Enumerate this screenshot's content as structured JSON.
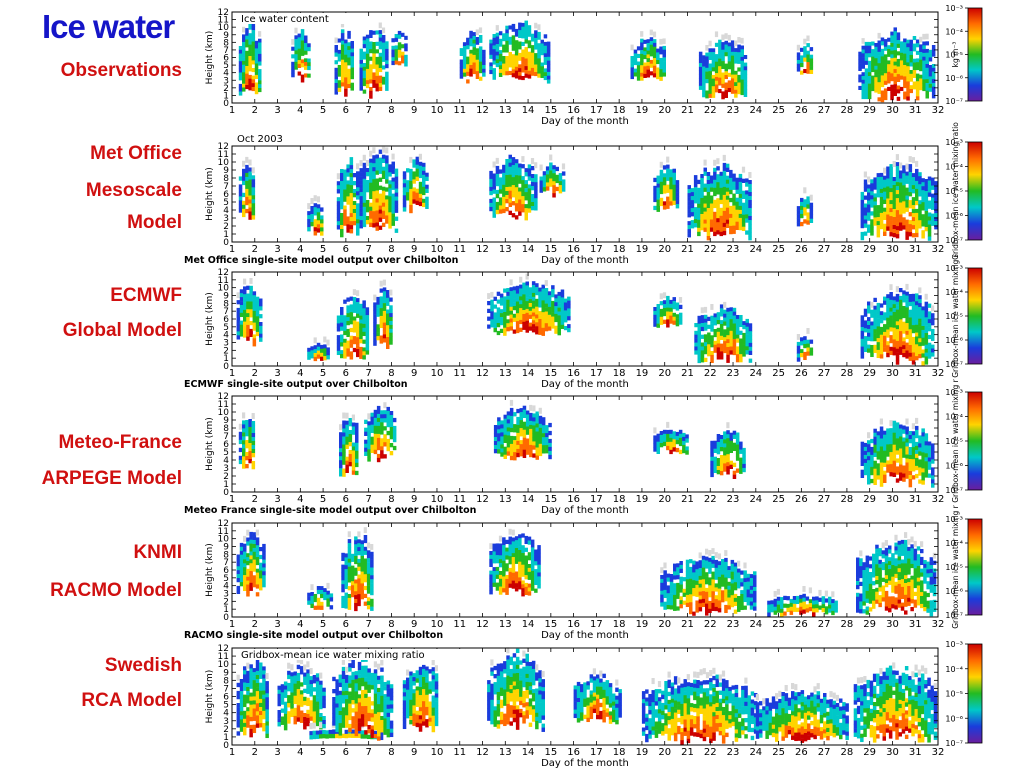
{
  "title": "Ice water",
  "colors": {
    "title": "#1515c8",
    "labels": "#d01010"
  },
  "colorbar": {
    "ticks": [
      "10⁻³",
      "10⁻⁴",
      "10⁻⁵",
      "10⁻⁶",
      "10⁻⁷"
    ],
    "stops": [
      "#cc0000",
      "#ff6a00",
      "#ffd400",
      "#22bb22",
      "#00c8c8",
      "#1a3cdc",
      "#6a1e9e"
    ]
  },
  "chart_data": [
    {
      "type": "heatmap",
      "label": [
        "Observations"
      ],
      "inner_title": "Ice water content",
      "top_text": "",
      "caption": "",
      "xlabel": "Day of the month",
      "ylabel": "Height (km)",
      "cbar_label": "kg m⁻³",
      "xlim": [
        1,
        32
      ],
      "ylim": [
        0,
        12
      ],
      "xticks": [
        1,
        2,
        3,
        4,
        5,
        6,
        7,
        8,
        9,
        10,
        11,
        12,
        13,
        14,
        15,
        16,
        17,
        18,
        19,
        20,
        21,
        22,
        23,
        24,
        25,
        26,
        27,
        28,
        29,
        30,
        31,
        32
      ],
      "yticks": [
        0,
        1,
        2,
        3,
        4,
        5,
        6,
        7,
        8,
        9,
        10,
        11,
        12
      ],
      "cloud_events": [
        {
          "start": 1.3,
          "end": 2.2,
          "base_km": 1,
          "top_km": 11
        },
        {
          "start": 3.6,
          "end": 4.4,
          "base_km": 3,
          "top_km": 10
        },
        {
          "start": 5.5,
          "end": 6.3,
          "base_km": 1,
          "top_km": 10
        },
        {
          "start": 6.6,
          "end": 7.8,
          "base_km": 1,
          "top_km": 11
        },
        {
          "start": 8.0,
          "end": 8.6,
          "base_km": 5,
          "top_km": 10
        },
        {
          "start": 11.0,
          "end": 12.0,
          "base_km": 3,
          "top_km": 10
        },
        {
          "start": 12.3,
          "end": 14.9,
          "base_km": 3,
          "top_km": 11
        },
        {
          "start": 18.5,
          "end": 20.0,
          "base_km": 3,
          "top_km": 9
        },
        {
          "start": 21.5,
          "end": 23.6,
          "base_km": 0.5,
          "top_km": 9
        },
        {
          "start": 25.8,
          "end": 26.5,
          "base_km": 4,
          "top_km": 8
        },
        {
          "start": 28.5,
          "end": 31.8,
          "base_km": 0.5,
          "top_km": 10
        }
      ]
    },
    {
      "type": "heatmap",
      "label": [
        "Met Office",
        "Mesoscale",
        "Model"
      ],
      "inner_title": "",
      "top_text": "Oct 2003",
      "caption": "Met Office single-site model output over Chilbolton",
      "xlabel": "Day of the month",
      "ylabel": "Height (km)",
      "cbar_label": "Gridbox-mean ice water mixing ratio",
      "xlim": [
        1,
        32
      ],
      "ylim": [
        0,
        12
      ],
      "xticks": [
        1,
        2,
        3,
        4,
        5,
        6,
        7,
        8,
        9,
        10,
        11,
        12,
        13,
        14,
        15,
        16,
        17,
        18,
        19,
        20,
        21,
        22,
        23,
        24,
        25,
        26,
        27,
        28,
        29,
        30,
        31,
        32
      ],
      "yticks": [
        0,
        1,
        2,
        3,
        4,
        5,
        6,
        7,
        8,
        9,
        10,
        11,
        12
      ],
      "cloud_events": [
        {
          "start": 1.3,
          "end": 2.0,
          "base_km": 3,
          "top_km": 10
        },
        {
          "start": 4.3,
          "end": 5.0,
          "base_km": 1,
          "top_km": 5
        },
        {
          "start": 5.6,
          "end": 6.5,
          "base_km": 1,
          "top_km": 11
        },
        {
          "start": 6.6,
          "end": 8.2,
          "base_km": 1,
          "top_km": 12
        },
        {
          "start": 8.5,
          "end": 9.5,
          "base_km": 4,
          "top_km": 11
        },
        {
          "start": 12.3,
          "end": 14.3,
          "base_km": 3,
          "top_km": 11
        },
        {
          "start": 14.5,
          "end": 15.5,
          "base_km": 6,
          "top_km": 10
        },
        {
          "start": 19.5,
          "end": 20.5,
          "base_km": 4,
          "top_km": 10
        },
        {
          "start": 21.0,
          "end": 23.8,
          "base_km": 0.5,
          "top_km": 10
        },
        {
          "start": 25.8,
          "end": 26.4,
          "base_km": 2,
          "top_km": 6
        },
        {
          "start": 28.6,
          "end": 31.9,
          "base_km": 0.5,
          "top_km": 10
        }
      ]
    },
    {
      "type": "heatmap",
      "label": [
        "ECMWF",
        "Global Model"
      ],
      "inner_title": "",
      "top_text": "",
      "caption": "ECMWF single-site output over Chilbolton",
      "xlabel": "Day of the month",
      "ylabel": "Height (km)",
      "cbar_label": "Gridbox-mean ice water mixing r",
      "xlim": [
        1,
        32
      ],
      "ylim": [
        0,
        12
      ],
      "xticks": [
        1,
        2,
        3,
        4,
        5,
        6,
        7,
        8,
        9,
        10,
        11,
        12,
        13,
        14,
        15,
        16,
        17,
        18,
        19,
        20,
        21,
        22,
        23,
        24,
        25,
        26,
        27,
        28,
        29,
        30,
        31,
        32
      ],
      "yticks": [
        0,
        1,
        2,
        3,
        4,
        5,
        6,
        7,
        8,
        9,
        10,
        11,
        12
      ],
      "cloud_events": [
        {
          "start": 1.2,
          "end": 2.2,
          "base_km": 3,
          "top_km": 11
        },
        {
          "start": 4.3,
          "end": 5.2,
          "base_km": 1,
          "top_km": 3
        },
        {
          "start": 5.6,
          "end": 7.0,
          "base_km": 1,
          "top_km": 10
        },
        {
          "start": 7.2,
          "end": 8.0,
          "base_km": 2,
          "top_km": 11
        },
        {
          "start": 12.2,
          "end": 15.8,
          "base_km": 4,
          "top_km": 11
        },
        {
          "start": 19.5,
          "end": 20.7,
          "base_km": 5,
          "top_km": 9
        },
        {
          "start": 21.3,
          "end": 23.8,
          "base_km": 0.5,
          "top_km": 8
        },
        {
          "start": 25.8,
          "end": 26.5,
          "base_km": 1,
          "top_km": 4
        },
        {
          "start": 28.6,
          "end": 31.8,
          "base_km": 0.5,
          "top_km": 10
        }
      ]
    },
    {
      "type": "heatmap",
      "label": [
        "Meteo-France",
        "ARPEGE Model"
      ],
      "inner_title": "",
      "top_text": "",
      "caption": "Meteo France single-site model output over Chilbolton",
      "xlabel": "Day of the month",
      "ylabel": "Height (km)",
      "cbar_label": "Gridbox-mean ice water mixing r",
      "xlim": [
        1,
        32
      ],
      "ylim": [
        0,
        12
      ],
      "xticks": [
        1,
        2,
        3,
        4,
        5,
        6,
        7,
        8,
        9,
        10,
        11,
        12,
        13,
        14,
        15,
        16,
        17,
        18,
        19,
        20,
        21,
        22,
        23,
        24,
        25,
        26,
        27,
        28,
        29,
        30,
        31,
        32
      ],
      "yticks": [
        0,
        1,
        2,
        3,
        4,
        5,
        6,
        7,
        8,
        9,
        10,
        11,
        12
      ],
      "cloud_events": [
        {
          "start": 1.3,
          "end": 2.0,
          "base_km": 3,
          "top_km": 10
        },
        {
          "start": 5.7,
          "end": 6.5,
          "base_km": 2,
          "top_km": 10
        },
        {
          "start": 6.8,
          "end": 8.2,
          "base_km": 4,
          "top_km": 11
        },
        {
          "start": 12.5,
          "end": 15.0,
          "base_km": 4,
          "top_km": 11
        },
        {
          "start": 19.5,
          "end": 21.0,
          "base_km": 5,
          "top_km": 8
        },
        {
          "start": 22.0,
          "end": 23.5,
          "base_km": 2,
          "top_km": 8
        },
        {
          "start": 28.6,
          "end": 31.8,
          "base_km": 1,
          "top_km": 9
        }
      ]
    },
    {
      "type": "heatmap",
      "label": [
        "KNMI",
        "RACMO Model"
      ],
      "inner_title": "",
      "top_text": "",
      "caption": "RACMO single-site model output over Chilbolton",
      "xlabel": "Day of the month",
      "ylabel": "Height (km)",
      "cbar_label": "Gridbox-mean ice water mixing r",
      "xlim": [
        1,
        32
      ],
      "ylim": [
        0,
        12
      ],
      "xticks": [
        1,
        2,
        3,
        4,
        5,
        6,
        7,
        8,
        9,
        10,
        11,
        12,
        13,
        14,
        15,
        16,
        17,
        18,
        19,
        20,
        21,
        22,
        23,
        24,
        25,
        26,
        27,
        28,
        29,
        30,
        31,
        32
      ],
      "yticks": [
        0,
        1,
        2,
        3,
        4,
        5,
        6,
        7,
        8,
        9,
        10,
        11,
        12
      ],
      "cloud_events": [
        {
          "start": 1.2,
          "end": 2.4,
          "base_km": 3,
          "top_km": 11
        },
        {
          "start": 4.3,
          "end": 5.3,
          "base_km": 1,
          "top_km": 4
        },
        {
          "start": 5.8,
          "end": 7.2,
          "base_km": 1,
          "top_km": 11
        },
        {
          "start": 12.3,
          "end": 14.5,
          "base_km": 3,
          "top_km": 11
        },
        {
          "start": 19.8,
          "end": 23.9,
          "base_km": 0.5,
          "top_km": 8
        },
        {
          "start": 24.5,
          "end": 27.5,
          "base_km": 0.5,
          "top_km": 3
        },
        {
          "start": 28.4,
          "end": 31.9,
          "base_km": 0.5,
          "top_km": 10
        }
      ]
    },
    {
      "type": "heatmap",
      "label": [
        "Swedish",
        "RCA Model"
      ],
      "inner_title": "Gridbox-mean ice water mixing ratio",
      "top_text": "",
      "caption": "",
      "xlabel": "Day of the month",
      "ylabel": "Height (km)",
      "cbar_label": "",
      "xlim": [
        1,
        32
      ],
      "ylim": [
        0,
        12
      ],
      "xticks": [
        1,
        2,
        3,
        4,
        5,
        6,
        7,
        8,
        9,
        10,
        11,
        12,
        13,
        14,
        15,
        16,
        17,
        18,
        19,
        20,
        21,
        22,
        23,
        24,
        25,
        26,
        27,
        28,
        29,
        30,
        31,
        32
      ],
      "yticks": [
        0,
        1,
        2,
        3,
        4,
        5,
        6,
        7,
        8,
        9,
        10,
        11,
        12
      ],
      "cloud_events": [
        {
          "start": 1.2,
          "end": 2.6,
          "base_km": 1,
          "top_km": 11
        },
        {
          "start": 3.0,
          "end": 5.0,
          "base_km": 2,
          "top_km": 10
        },
        {
          "start": 4.4,
          "end": 7.5,
          "base_km": 1,
          "top_km": 2
        },
        {
          "start": 5.4,
          "end": 8.0,
          "base_km": 1,
          "top_km": 11
        },
        {
          "start": 8.5,
          "end": 10.0,
          "base_km": 2,
          "top_km": 11
        },
        {
          "start": 12.2,
          "end": 14.6,
          "base_km": 2,
          "top_km": 12
        },
        {
          "start": 16.0,
          "end": 18.0,
          "base_km": 3,
          "top_km": 9
        },
        {
          "start": 19.0,
          "end": 24.0,
          "base_km": 0.5,
          "top_km": 9
        },
        {
          "start": 24.0,
          "end": 28.0,
          "base_km": 0.5,
          "top_km": 7
        },
        {
          "start": 28.3,
          "end": 31.9,
          "base_km": 0.5,
          "top_km": 10
        }
      ]
    }
  ]
}
